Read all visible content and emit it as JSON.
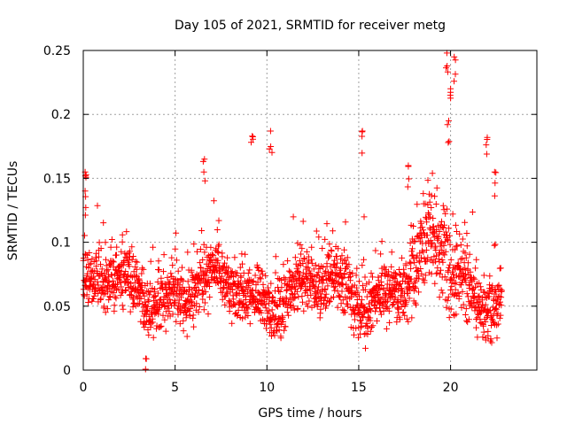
{
  "chart_data": {
    "type": "scatter",
    "title": "Day 105 of 2021, SRMTID for receiver metg",
    "xlabel": "GPS time / hours",
    "ylabel": "SRMTID / TECUs",
    "xlim": [
      0,
      24.7
    ],
    "ylim": [
      0,
      0.25
    ],
    "x_ticks": [
      0,
      5,
      10,
      15,
      20
    ],
    "x_tick_labels": [
      "0",
      "5",
      "10",
      "15",
      "20"
    ],
    "y_ticks": [
      0,
      0.05,
      0.1,
      0.15,
      0.2,
      0.25
    ],
    "y_tick_labels": [
      "0",
      "0.05",
      "0.1",
      "0.15",
      "0.2",
      "0.25"
    ],
    "grid": true,
    "marker": "+",
    "series": [
      {
        "name": "SRMTID",
        "color": "#ff0000",
        "x_range_hours": [
          0,
          22.8
        ],
        "typical_range": [
          0.03,
          0.12
        ],
        "notable_points": [
          {
            "x": 0.1,
            "y": 0.155
          },
          {
            "x": 0.1,
            "y": 0.14
          },
          {
            "x": 3.4,
            "y": 0.009
          },
          {
            "x": 6.6,
            "y": 0.165
          },
          {
            "x": 9.2,
            "y": 0.183
          },
          {
            "x": 10.2,
            "y": 0.187
          },
          {
            "x": 15.2,
            "y": 0.187
          },
          {
            "x": 17.7,
            "y": 0.16
          },
          {
            "x": 19.8,
            "y": 0.248
          },
          {
            "x": 20.2,
            "y": 0.245
          },
          {
            "x": 20.0,
            "y": 0.22
          },
          {
            "x": 19.9,
            "y": 0.195
          },
          {
            "x": 22.0,
            "y": 0.182
          },
          {
            "x": 22.4,
            "y": 0.155
          }
        ]
      }
    ]
  }
}
